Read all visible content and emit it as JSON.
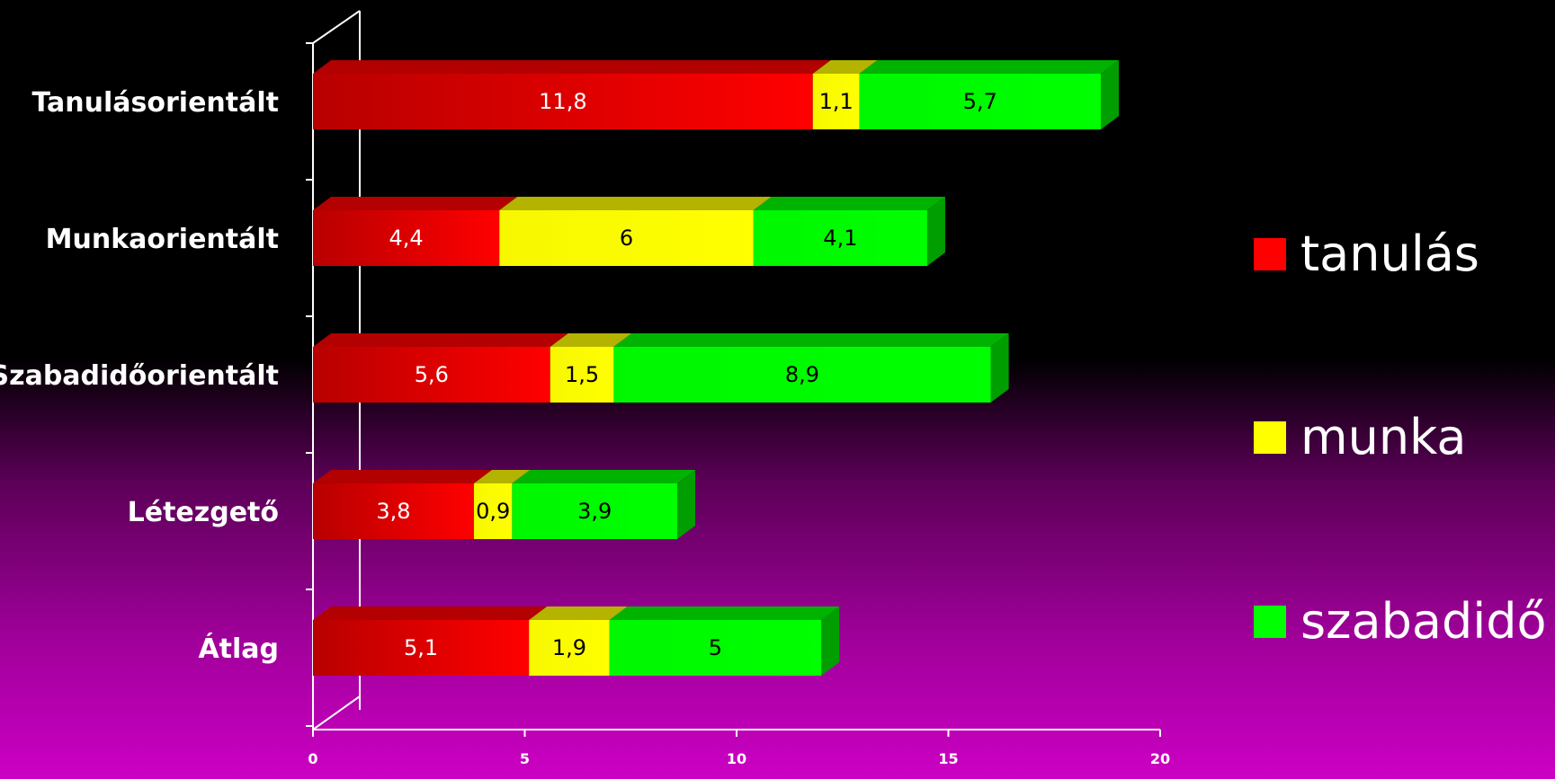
{
  "chart_data": {
    "type": "bar",
    "orientation": "horizontal",
    "stacked": true,
    "three_d": true,
    "categories": [
      "Tanulásorientált",
      "Munkaorientált",
      "Szabadidőorientált",
      "Létezgető",
      "Átlag"
    ],
    "series": [
      {
        "name": "tanulás",
        "color": "#ff0000",
        "values": [
          11.8,
          4.4,
          5.6,
          3.8,
          5.1
        ],
        "labels": [
          "11,8",
          "4,4",
          "5,6",
          "3,8",
          "5,1"
        ],
        "label_color": "#ffffff"
      },
      {
        "name": "munka",
        "color": "#ffff00",
        "values": [
          1.1,
          6,
          1.5,
          0.9,
          1.9
        ],
        "labels": [
          "1,1",
          "6",
          "1,5",
          "0,9",
          "1,9"
        ],
        "label_color": "#000000"
      },
      {
        "name": "szabadidő",
        "color": "#00ff00",
        "values": [
          5.7,
          4.1,
          8.9,
          3.9,
          5
        ],
        "labels": [
          "5,7",
          "4,1",
          "8,9",
          "3,9",
          "5"
        ],
        "label_color": "#000000"
      }
    ],
    "x_ticks": [
      "0",
      "5",
      "10",
      "15",
      "20"
    ],
    "xlim": [
      0,
      20
    ],
    "title": "",
    "xlabel": "",
    "ylabel": "",
    "grid": false,
    "legend_position": "right",
    "axis_color": "#ffffff"
  }
}
